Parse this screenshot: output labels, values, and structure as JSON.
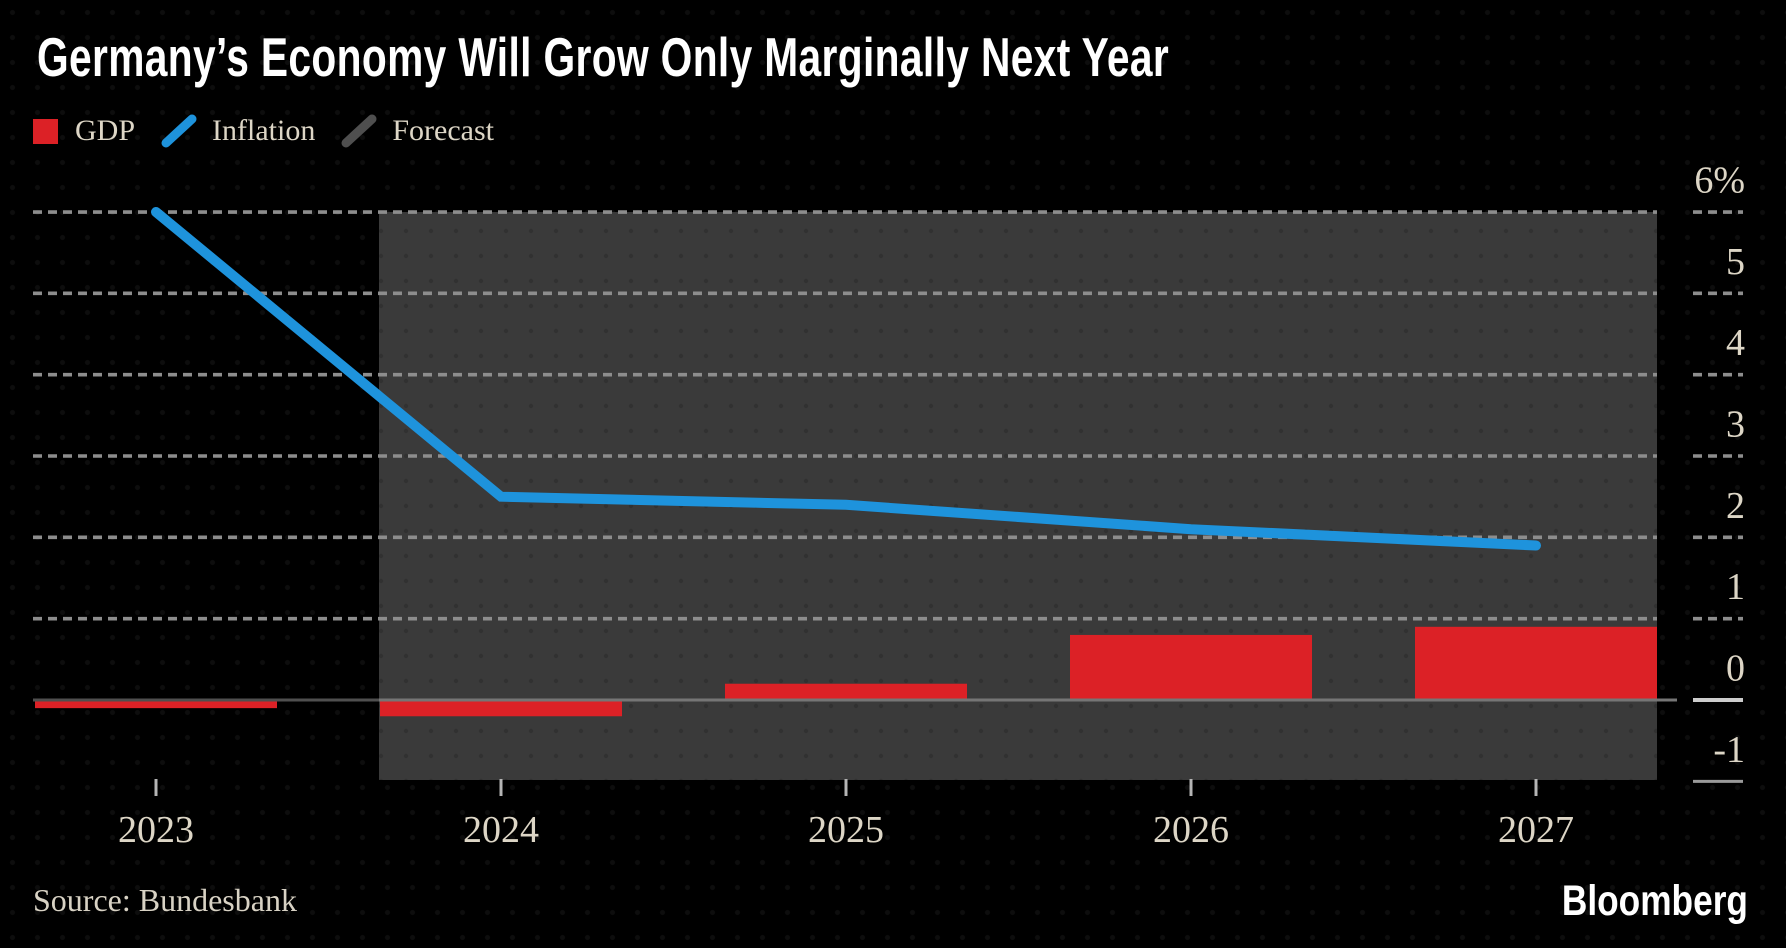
{
  "header": {
    "title": "Germany’s Economy Will Grow Only Marginally Next Year"
  },
  "legend": {
    "items": [
      {
        "label": "GDP",
        "marker": "square",
        "color": "#dc2126"
      },
      {
        "label": "Inflation",
        "marker": "slash",
        "color": "#1e93dc"
      },
      {
        "label": "Forecast",
        "marker": "slash",
        "color": "#4f4f4f"
      }
    ]
  },
  "chart_data": {
    "type": "bar+line",
    "categories": [
      "2023",
      "2024",
      "2025",
      "2026",
      "2027"
    ],
    "series": [
      {
        "name": "GDP",
        "type": "bar",
        "color": "#dc2126",
        "values": [
          -0.1,
          -0.2,
          0.2,
          0.8,
          0.9
        ]
      },
      {
        "name": "Inflation",
        "type": "line",
        "color": "#1e93dc",
        "values": [
          6.0,
          2.5,
          2.4,
          2.1,
          1.9
        ]
      }
    ],
    "forecast_region": {
      "from_category": "2024",
      "to_category": "2027",
      "color": "#3a3a3a"
    },
    "y_axis": {
      "unit": "%",
      "ylim": [
        -1,
        6.1
      ],
      "ticks": [
        6,
        5,
        4,
        3,
        2,
        1,
        0,
        -1
      ],
      "tick_labels": [
        "6%",
        "5",
        "4",
        "3",
        "2",
        "1",
        "0",
        "-1"
      ],
      "side": "right",
      "grid": "dashed-horizontal",
      "zero_line": "solid"
    },
    "x_axis": {
      "tick_labels": [
        "2023",
        "2024",
        "2025",
        "2026",
        "2027"
      ]
    }
  },
  "footer": {
    "source": "Source: Bundesbank",
    "brand": "Bloomberg"
  },
  "palette": {
    "background": "#000000",
    "forecast_band": "#3a3a3a",
    "gridline": "#8d8d8d",
    "zero_line": "#757575",
    "zero_line_left": "#4f4f4f",
    "zero_tick_bright": "#cccccc",
    "axis_text": "#ddd6c6",
    "title_text": "#ffffff"
  }
}
